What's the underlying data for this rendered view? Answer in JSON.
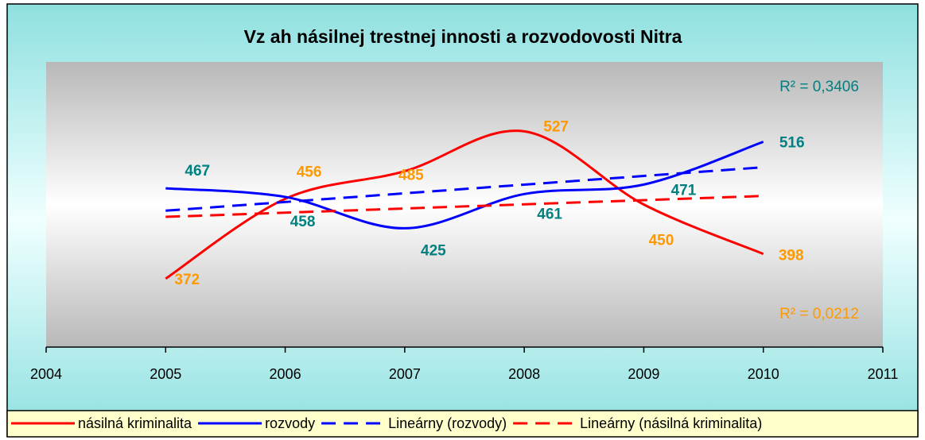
{
  "chart_data": {
    "type": "line",
    "title": "Vz  ah násilnej trestnej   innosti a rozvodovosti Nitra",
    "x": [
      2005,
      2006,
      2007,
      2008,
      2009,
      2010
    ],
    "xlim": [
      2004,
      2011
    ],
    "xticks": [
      2004,
      2005,
      2006,
      2007,
      2008,
      2009,
      2010,
      2011
    ],
    "ylim": [
      300,
      600
    ],
    "series": [
      {
        "name": "násilná kriminalita",
        "color": "#ff0000",
        "label_color": "#ff9900",
        "smooth": true,
        "values": [
          372,
          456,
          485,
          527,
          450,
          398
        ]
      },
      {
        "name": "rozvody",
        "color": "#0000ff",
        "label_color": "#008080",
        "smooth": true,
        "values": [
          467,
          458,
          425,
          461,
          471,
          516
        ]
      },
      {
        "name": "Lineárny (rozvody)",
        "color": "#0000ff",
        "dashed": true,
        "x": [
          2005,
          2010
        ],
        "values": [
          443.5,
          489.2
        ]
      },
      {
        "name": "Lineárny (násilná kriminalita)",
        "color": "#ff0000",
        "dashed": true,
        "x": [
          2005,
          2010
        ],
        "values": [
          437,
          459
        ]
      }
    ],
    "annotations": [
      {
        "text": "R² = 0,3406",
        "color": "#008080"
      },
      {
        "text": "R² = 0,0212",
        "color": "#ff9900"
      }
    ]
  }
}
